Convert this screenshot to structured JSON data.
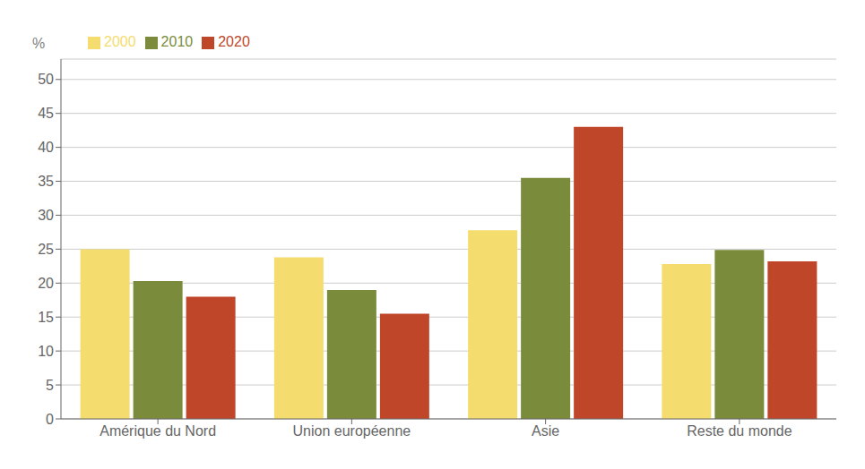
{
  "chart_data": {
    "type": "bar",
    "categories": [
      "Amérique du Nord",
      "Union européenne",
      "Asie",
      "Reste du monde"
    ],
    "series": [
      {
        "name": "2000",
        "color": "#F5DC6E",
        "values": [
          25.0,
          23.8,
          27.8,
          22.8
        ]
      },
      {
        "name": "2010",
        "color": "#7A8C3C",
        "values": [
          20.3,
          19.0,
          35.5,
          24.9
        ]
      },
      {
        "name": "2020",
        "color": "#C0462A",
        "values": [
          18.0,
          15.5,
          43.0,
          23.2
        ]
      }
    ],
    "ylabel": "%",
    "ylim": [
      0,
      53
    ],
    "yticks": [
      0,
      5,
      10,
      15,
      20,
      25,
      30,
      35,
      40,
      45,
      50
    ],
    "grid": true,
    "legend": "upper left"
  }
}
